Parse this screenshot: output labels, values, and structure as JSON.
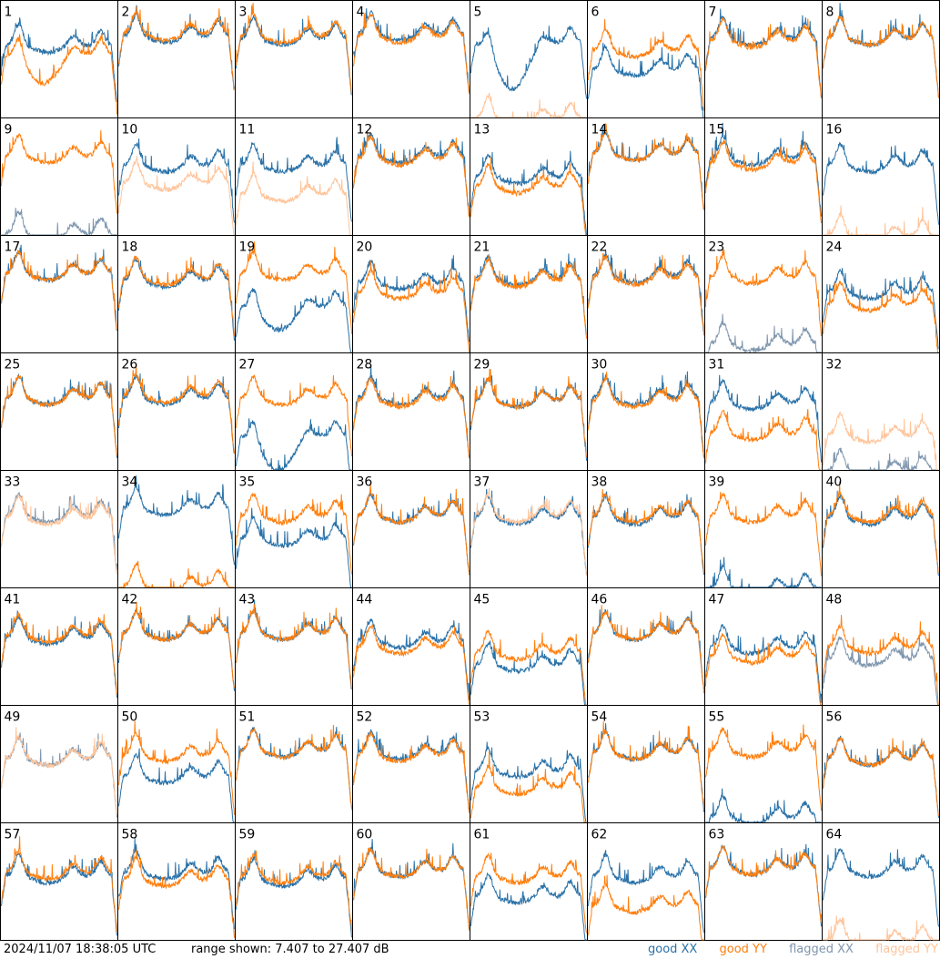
{
  "footer": {
    "timestamp": "2024/11/07 18:38:05 UTC",
    "range_text": "range shown: 7.407 to 27.407 dB"
  },
  "colors": {
    "good_xx": "#2a72a8",
    "good_yy": "#ff7f0e",
    "flagged_xx": "#7f96ae",
    "flagged_yy": "#ffc49a"
  },
  "chart_data": {
    "type": "line",
    "xlabel": "",
    "ylabel": "",
    "ylim_db": [
      7.407,
      27.407
    ],
    "legend": {
      "placement": "bottom-right",
      "entries": [
        {
          "key": "good_xx",
          "label": "good XX"
        },
        {
          "key": "good_yy",
          "label": "good YY"
        },
        {
          "key": "flagged_xx",
          "label": "flagged XX"
        },
        {
          "key": "flagged_yy",
          "label": "flagged YY"
        }
      ]
    },
    "panels": [
      {
        "id": "1",
        "xx": "good",
        "yy": "good",
        "xx_level": 0.62,
        "yy_level": 0.55,
        "yy_dip": 0.35
      },
      {
        "id": "2",
        "xx": "good",
        "yy": "good",
        "xx_level": 0.7,
        "yy_level": 0.72
      },
      {
        "id": "3",
        "xx": "good",
        "yy": "good",
        "xx_level": 0.68,
        "yy_level": 0.7
      },
      {
        "id": "4",
        "xx": "good",
        "yy": "good",
        "xx_level": 0.72,
        "yy_level": 0.7
      },
      {
        "id": "5",
        "xx": "good",
        "yy": "flagged",
        "xx_level": 0.65,
        "xx_dip": 0.3,
        "yy_level": 0.0
      },
      {
        "id": "6",
        "xx": "good",
        "yy": "good",
        "xx_level": 0.42,
        "yy_level": 0.58
      },
      {
        "id": "7",
        "xx": "good",
        "yy": "good",
        "xx_level": 0.68,
        "yy_level": 0.66
      },
      {
        "id": "8",
        "xx": "good",
        "yy": "good",
        "xx_level": 0.68,
        "yy_level": 0.68
      },
      {
        "id": "9",
        "xx": "flagged",
        "yy": "good",
        "xx_level": 0.02,
        "yy_level": 0.68
      },
      {
        "id": "10",
        "xx": "good",
        "yy": "flagged",
        "xx_level": 0.6,
        "yy_level": 0.45
      },
      {
        "id": "11",
        "xx": "good",
        "yy": "flagged",
        "xx_level": 0.6,
        "yy_level": 0.35
      },
      {
        "id": "12",
        "xx": "good",
        "yy": "good",
        "xx_level": 0.68,
        "yy_level": 0.66
      },
      {
        "id": "13",
        "xx": "good",
        "yy": "good",
        "xx_level": 0.5,
        "yy_level": 0.42
      },
      {
        "id": "14",
        "xx": "good",
        "yy": "good",
        "xx_level": 0.7,
        "yy_level": 0.7
      },
      {
        "id": "15",
        "xx": "good",
        "yy": "good",
        "xx_level": 0.66,
        "yy_level": 0.62
      },
      {
        "id": "16",
        "xx": "good",
        "yy": "flagged",
        "xx_level": 0.6,
        "yy_level": 0.0
      },
      {
        "id": "17",
        "xx": "good",
        "yy": "good",
        "xx_level": 0.68,
        "yy_level": 0.68
      },
      {
        "id": "18",
        "xx": "good",
        "yy": "good",
        "xx_level": 0.62,
        "yy_level": 0.64
      },
      {
        "id": "19",
        "xx": "good",
        "yy": "good",
        "xx_level": 0.4,
        "xx_dip": 0.25,
        "yy_level": 0.68
      },
      {
        "id": "20",
        "xx": "good",
        "yy": "good",
        "xx_level": 0.6,
        "yy_level": 0.52
      },
      {
        "id": "21",
        "xx": "good",
        "yy": "good",
        "xx_level": 0.64,
        "yy_level": 0.62
      },
      {
        "id": "22",
        "xx": "good",
        "yy": "good",
        "xx_level": 0.66,
        "yy_level": 0.64
      },
      {
        "id": "23",
        "xx": "flagged",
        "yy": "good",
        "xx_level": 0.08,
        "yy_level": 0.65
      },
      {
        "id": "24",
        "xx": "good",
        "yy": "good",
        "xx_level": 0.52,
        "yy_level": 0.42
      },
      {
        "id": "25",
        "xx": "good",
        "yy": "good",
        "xx_level": 0.62,
        "yy_level": 0.62
      },
      {
        "id": "26",
        "xx": "good",
        "yy": "good",
        "xx_level": 0.62,
        "yy_level": 0.64
      },
      {
        "id": "27",
        "xx": "good",
        "yy": "good",
        "xx_level": 0.3,
        "xx_dip": 0.05,
        "yy_level": 0.62
      },
      {
        "id": "28",
        "xx": "good",
        "yy": "good",
        "xx_level": 0.62,
        "yy_level": 0.6
      },
      {
        "id": "29",
        "xx": "good",
        "yy": "good",
        "xx_level": 0.6,
        "yy_level": 0.6
      },
      {
        "id": "30",
        "xx": "good",
        "yy": "good",
        "xx_level": 0.62,
        "yy_level": 0.6
      },
      {
        "id": "31",
        "xx": "good",
        "yy": "good",
        "xx_level": 0.58,
        "yy_level": 0.32
      },
      {
        "id": "32",
        "xx": "flagged",
        "yy": "flagged",
        "xx_level": 0.0,
        "yy_level": 0.3
      },
      {
        "id": "33",
        "xx": "flagged",
        "yy": "flagged",
        "xx_level": 0.62,
        "yy_level": 0.6
      },
      {
        "id": "34",
        "xx": "good",
        "yy": "good",
        "xx_level": 0.68,
        "yy_level": 0.02
      },
      {
        "id": "35",
        "xx": "good",
        "yy": "good",
        "xx_level": 0.42,
        "yy_level": 0.62
      },
      {
        "id": "36",
        "xx": "good",
        "yy": "good",
        "xx_level": 0.62,
        "yy_level": 0.62
      },
      {
        "id": "37",
        "xx": "good",
        "yy": "flagged",
        "xx_level": 0.6,
        "yy_level": 0.62
      },
      {
        "id": "38",
        "xx": "good",
        "yy": "good",
        "xx_level": 0.6,
        "yy_level": 0.62
      },
      {
        "id": "39",
        "xx": "good",
        "yy": "good",
        "xx_level": 0.0,
        "yy_level": 0.62
      },
      {
        "id": "40",
        "xx": "good",
        "yy": "good",
        "xx_level": 0.6,
        "yy_level": 0.62
      },
      {
        "id": "41",
        "xx": "good",
        "yy": "good",
        "xx_level": 0.58,
        "yy_level": 0.6
      },
      {
        "id": "42",
        "xx": "good",
        "yy": "good",
        "xx_level": 0.62,
        "yy_level": 0.62
      },
      {
        "id": "43",
        "xx": "good",
        "yy": "good",
        "xx_level": 0.62,
        "yy_level": 0.62
      },
      {
        "id": "44",
        "xx": "good",
        "yy": "good",
        "xx_level": 0.55,
        "yy_level": 0.5
      },
      {
        "id": "45",
        "xx": "good",
        "yy": "good",
        "xx_level": 0.35,
        "yy_level": 0.45
      },
      {
        "id": "46",
        "xx": "good",
        "yy": "good",
        "xx_level": 0.62,
        "yy_level": 0.62
      },
      {
        "id": "47",
        "xx": "good",
        "yy": "good",
        "xx_level": 0.5,
        "yy_level": 0.42
      },
      {
        "id": "48",
        "xx": "flagged",
        "yy": "good",
        "xx_level": 0.4,
        "yy_level": 0.5
      },
      {
        "id": "49",
        "xx": "flagged",
        "yy": "flagged",
        "xx_level": 0.55,
        "yy_level": 0.55
      },
      {
        "id": "50",
        "xx": "good",
        "yy": "good",
        "xx_level": 0.4,
        "yy_level": 0.58
      },
      {
        "id": "51",
        "xx": "good",
        "yy": "good",
        "xx_level": 0.62,
        "yy_level": 0.62
      },
      {
        "id": "52",
        "xx": "good",
        "yy": "good",
        "xx_level": 0.6,
        "yy_level": 0.58
      },
      {
        "id": "53",
        "xx": "good",
        "yy": "good",
        "xx_level": 0.45,
        "yy_level": 0.3
      },
      {
        "id": "54",
        "xx": "good",
        "yy": "good",
        "xx_level": 0.6,
        "yy_level": 0.6
      },
      {
        "id": "55",
        "xx": "good",
        "yy": "good",
        "xx_level": 0.05,
        "yy_level": 0.62
      },
      {
        "id": "56",
        "xx": "good",
        "yy": "good",
        "xx_level": 0.55,
        "yy_level": 0.55
      },
      {
        "id": "57",
        "xx": "good",
        "yy": "good",
        "xx_level": 0.55,
        "yy_level": 0.58
      },
      {
        "id": "58",
        "xx": "good",
        "yy": "good",
        "xx_level": 0.58,
        "yy_level": 0.52
      },
      {
        "id": "59",
        "xx": "good",
        "yy": "good",
        "xx_level": 0.52,
        "yy_level": 0.55
      },
      {
        "id": "60",
        "xx": "good",
        "yy": "good",
        "xx_level": 0.6,
        "yy_level": 0.6
      },
      {
        "id": "61",
        "xx": "good",
        "yy": "good",
        "xx_level": 0.38,
        "yy_level": 0.55
      },
      {
        "id": "62",
        "xx": "good",
        "yy": "good",
        "xx_level": 0.55,
        "yy_level": 0.3
      },
      {
        "id": "63",
        "xx": "good",
        "yy": "good",
        "xx_level": 0.62,
        "yy_level": 0.62
      },
      {
        "id": "64",
        "xx": "good",
        "yy": "flagged",
        "xx_level": 0.6,
        "yy_level": 0.0
      }
    ]
  }
}
